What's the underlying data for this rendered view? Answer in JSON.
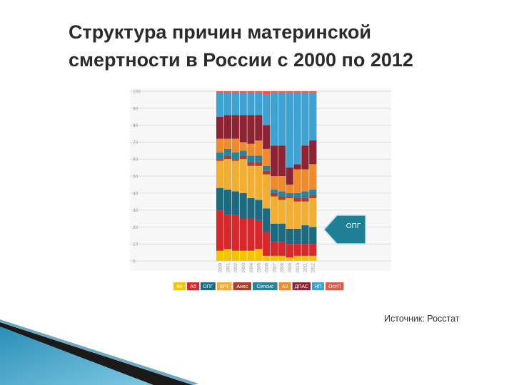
{
  "slide": {
    "title_line1": "Структура причин материнской",
    "title_line2": "смертности в России с 2000 по 2012",
    "source": "Источник: Росстат",
    "callout_label": "ОПГ"
  },
  "chart_data": {
    "type": "bar",
    "stacked": true,
    "categories": [
      "2000",
      "2001",
      "2002",
      "2003",
      "2004",
      "2005",
      "2006",
      "2007",
      "2008",
      "2009",
      "2010",
      "2011",
      "2012"
    ],
    "ylim": [
      0,
      100
    ],
    "yticks": [
      0,
      10,
      20,
      30,
      40,
      50,
      60,
      70,
      80,
      90,
      100
    ],
    "grid": true,
    "legend_position": "bottom",
    "series": [
      {
        "name": "Вн",
        "color": "#f2c500",
        "values": [
          6,
          7,
          6,
          6,
          6,
          7,
          3,
          3,
          3,
          2,
          3,
          3,
          3
        ]
      },
      {
        "name": "Аб",
        "color": "#d7282c",
        "values": [
          24,
          20,
          21,
          19,
          19,
          17,
          14,
          8,
          8,
          8,
          7,
          7,
          7
        ]
      },
      {
        "name": "ОПГ",
        "color": "#1b6a80",
        "values": [
          13,
          15,
          14,
          15,
          12,
          12,
          14,
          11,
          11,
          9,
          9,
          11,
          10
        ]
      },
      {
        "name": "КРТ",
        "color": "#f2ad33",
        "values": [
          16,
          18,
          18,
          20,
          19,
          20,
          20,
          16,
          14,
          18,
          16,
          14,
          17
        ]
      },
      {
        "name": "Анес",
        "color": "#b03c2c",
        "values": [
          1,
          2,
          1,
          2,
          2,
          2,
          2,
          2,
          2,
          1,
          2,
          2,
          2
        ]
      },
      {
        "name": "Сепсис",
        "color": "#28849b",
        "values": [
          4,
          4,
          4,
          3,
          4,
          4,
          3,
          2,
          3,
          2,
          3,
          4,
          3
        ]
      },
      {
        "name": "АЗ",
        "color": "#ef8b2c",
        "values": [
          8,
          6,
          8,
          5,
          7,
          9,
          10,
          8,
          9,
          5,
          14,
          13,
          15
        ]
      },
      {
        "name": "ДПАС",
        "color": "#8c2433",
        "values": [
          13,
          14,
          14,
          16,
          17,
          15,
          14,
          18,
          18,
          10,
          3,
          14,
          14
        ]
      },
      {
        "name": "НП",
        "color": "#3ea2d3",
        "values": [
          14,
          13,
          13,
          13,
          13,
          13,
          18,
          31,
          31,
          44,
          42,
          31,
          28
        ]
      },
      {
        "name": "ОстП",
        "color": "#e05a4a",
        "values": [
          1,
          1,
          1,
          1,
          1,
          1,
          2,
          1,
          1,
          1,
          1,
          1,
          1
        ]
      }
    ]
  }
}
